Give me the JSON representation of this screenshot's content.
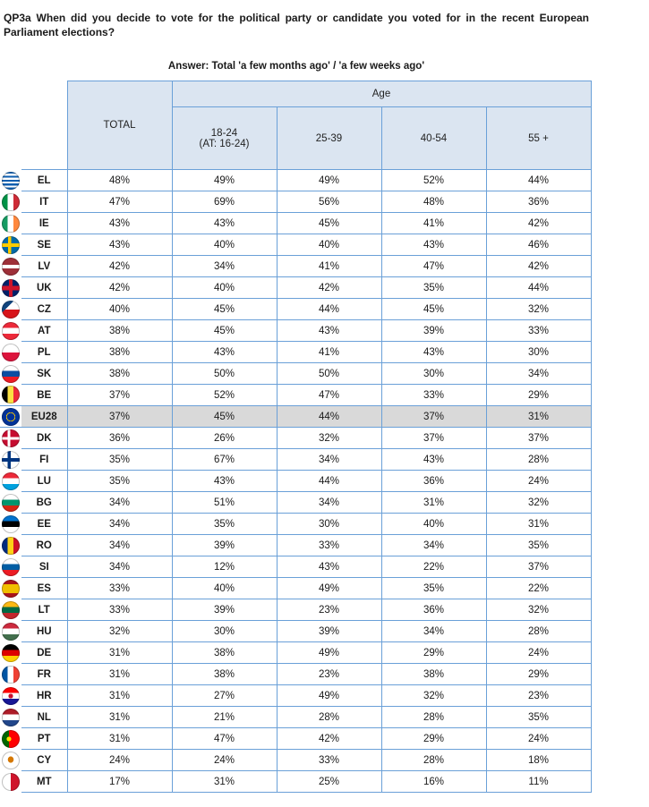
{
  "question": "QP3a When did you decide to vote for the political party or candidate you voted for in the recent European Parliament elections?",
  "answer": "Answer: Total 'a few months ago' / 'a few weeks ago'",
  "header": {
    "group_label": "Age",
    "total_label": "TOTAL",
    "age_labels": [
      {
        "line1": "18-24",
        "line2": "(AT: 16-24)"
      },
      {
        "line1": "25-39",
        "line2": ""
      },
      {
        "line1": "40-54",
        "line2": ""
      },
      {
        "line1": "55 +",
        "line2": ""
      }
    ]
  },
  "rows": [
    {
      "code": "EL",
      "flag": "greece-flag-icon",
      "values": [
        "48%",
        "49%",
        "49%",
        "52%",
        "44%"
      ]
    },
    {
      "code": "IT",
      "flag": "italy-flag-icon",
      "values": [
        "47%",
        "69%",
        "56%",
        "48%",
        "36%"
      ]
    },
    {
      "code": "IE",
      "flag": "ireland-flag-icon",
      "values": [
        "43%",
        "43%",
        "45%",
        "41%",
        "42%"
      ]
    },
    {
      "code": "SE",
      "flag": "sweden-flag-icon",
      "values": [
        "43%",
        "40%",
        "40%",
        "43%",
        "46%"
      ]
    },
    {
      "code": "LV",
      "flag": "latvia-flag-icon",
      "values": [
        "42%",
        "34%",
        "41%",
        "47%",
        "42%"
      ]
    },
    {
      "code": "UK",
      "flag": "uk-flag-icon",
      "values": [
        "42%",
        "40%",
        "42%",
        "35%",
        "44%"
      ]
    },
    {
      "code": "CZ",
      "flag": "czechia-flag-icon",
      "values": [
        "40%",
        "45%",
        "44%",
        "45%",
        "32%"
      ]
    },
    {
      "code": "AT",
      "flag": "austria-flag-icon",
      "values": [
        "38%",
        "45%",
        "43%",
        "39%",
        "33%"
      ]
    },
    {
      "code": "PL",
      "flag": "poland-flag-icon",
      "values": [
        "38%",
        "43%",
        "41%",
        "43%",
        "30%"
      ]
    },
    {
      "code": "SK",
      "flag": "slovakia-flag-icon",
      "values": [
        "38%",
        "50%",
        "50%",
        "30%",
        "34%"
      ]
    },
    {
      "code": "BE",
      "flag": "belgium-flag-icon",
      "values": [
        "37%",
        "52%",
        "47%",
        "33%",
        "29%"
      ]
    },
    {
      "code": "EU28",
      "flag": "eu-flag-icon",
      "values": [
        "37%",
        "45%",
        "44%",
        "37%",
        "31%"
      ],
      "highlight": true
    },
    {
      "code": "DK",
      "flag": "denmark-flag-icon",
      "values": [
        "36%",
        "26%",
        "32%",
        "37%",
        "37%"
      ]
    },
    {
      "code": "FI",
      "flag": "finland-flag-icon",
      "values": [
        "35%",
        "67%",
        "34%",
        "43%",
        "28%"
      ]
    },
    {
      "code": "LU",
      "flag": "luxembourg-flag-icon",
      "values": [
        "35%",
        "43%",
        "44%",
        "36%",
        "24%"
      ]
    },
    {
      "code": "BG",
      "flag": "bulgaria-flag-icon",
      "values": [
        "34%",
        "51%",
        "34%",
        "31%",
        "32%"
      ]
    },
    {
      "code": "EE",
      "flag": "estonia-flag-icon",
      "values": [
        "34%",
        "35%",
        "30%",
        "40%",
        "31%"
      ]
    },
    {
      "code": "RO",
      "flag": "romania-flag-icon",
      "values": [
        "34%",
        "39%",
        "33%",
        "34%",
        "35%"
      ]
    },
    {
      "code": "SI",
      "flag": "slovenia-flag-icon",
      "values": [
        "34%",
        "12%",
        "43%",
        "22%",
        "37%"
      ]
    },
    {
      "code": "ES",
      "flag": "spain-flag-icon",
      "values": [
        "33%",
        "40%",
        "49%",
        "35%",
        "22%"
      ]
    },
    {
      "code": "LT",
      "flag": "lithuania-flag-icon",
      "values": [
        "33%",
        "39%",
        "23%",
        "36%",
        "32%"
      ]
    },
    {
      "code": "HU",
      "flag": "hungary-flag-icon",
      "values": [
        "32%",
        "30%",
        "39%",
        "34%",
        "28%"
      ]
    },
    {
      "code": "DE",
      "flag": "germany-flag-icon",
      "values": [
        "31%",
        "38%",
        "49%",
        "29%",
        "24%"
      ]
    },
    {
      "code": "FR",
      "flag": "france-flag-icon",
      "values": [
        "31%",
        "38%",
        "23%",
        "38%",
        "29%"
      ]
    },
    {
      "code": "HR",
      "flag": "croatia-flag-icon",
      "values": [
        "31%",
        "27%",
        "49%",
        "32%",
        "23%"
      ]
    },
    {
      "code": "NL",
      "flag": "netherlands-flag-icon",
      "values": [
        "31%",
        "21%",
        "28%",
        "28%",
        "35%"
      ]
    },
    {
      "code": "PT",
      "flag": "portugal-flag-icon",
      "values": [
        "31%",
        "47%",
        "42%",
        "29%",
        "24%"
      ]
    },
    {
      "code": "CY",
      "flag": "cyprus-flag-icon",
      "values": [
        "24%",
        "24%",
        "33%",
        "28%",
        "18%"
      ]
    },
    {
      "code": "MT",
      "flag": "malta-flag-icon",
      "values": [
        "17%",
        "31%",
        "25%",
        "16%",
        "11%"
      ]
    }
  ]
}
